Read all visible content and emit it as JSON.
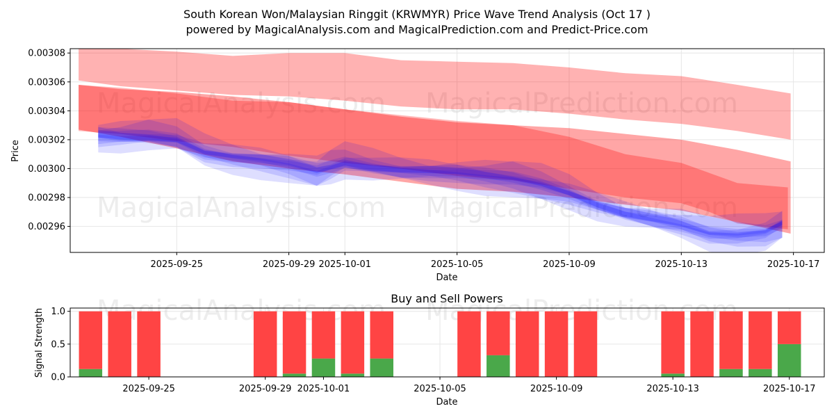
{
  "title_line1": "South Korean Won/Malaysian Ringgit (KRWMYR) Price Wave Trend Analysis (Oct 17 )",
  "title_line2": "powered by MagicalAnalysis.com and MagicalPrediction.com and Predict-Price.com",
  "watermarks": [
    "MagicalAnalysis.com",
    "MagicalPrediction.com"
  ],
  "colors": {
    "buy": "#4aa84a",
    "sell": "#ff4444",
    "red_band": "#ff0000",
    "blue_band": "#0000ff"
  },
  "chart_data": [
    {
      "type": "area",
      "title": "",
      "xlabel": "Date",
      "ylabel": "Price",
      "ylim": [
        0.002942,
        0.003083
      ],
      "yticks": [
        "0.00296",
        "0.00298",
        "0.00300",
        "0.00302",
        "0.00304",
        "0.00306",
        "0.00308"
      ],
      "ytick_values": [
        0.00296,
        0.00298,
        0.003,
        0.00302,
        0.00304,
        0.00306,
        0.00308
      ],
      "xticks": [
        "2025-09-25",
        "2025-09-29",
        "2025-10-01",
        "2025-10-05",
        "2025-10-09",
        "2025-10-13",
        "2025-10-17"
      ],
      "xtick_days": [
        3,
        7,
        9,
        13,
        17,
        21,
        25
      ],
      "xlim_days": [
        -0.8,
        26.1
      ],
      "grid": true,
      "red_bands": [
        {
          "name": "outer-band",
          "days": [
            -0.5,
            1,
            3,
            5,
            7,
            9,
            11,
            13,
            15,
            17,
            19,
            21,
            23,
            24.9
          ],
          "upper": [
            0.003083,
            0.003083,
            0.003081,
            0.003078,
            0.00308,
            0.00308,
            0.003075,
            0.003074,
            0.003073,
            0.00307,
            0.003066,
            0.003064,
            0.003058,
            0.003052
          ],
          "lower": [
            0.003061,
            0.003057,
            0.003054,
            0.003051,
            0.00305,
            0.003047,
            0.003043,
            0.003041,
            0.003041,
            0.003038,
            0.003034,
            0.003031,
            0.003026,
            0.00302
          ]
        },
        {
          "name": "middle-band",
          "days": [
            -0.5,
            1,
            3,
            5,
            7,
            9,
            11,
            13,
            15,
            17,
            19,
            21,
            23,
            24.9
          ],
          "upper": [
            0.003058,
            0.003055,
            0.003053,
            0.00305,
            0.003046,
            0.003041,
            0.003036,
            0.003032,
            0.00303,
            0.003028,
            0.003024,
            0.00302,
            0.003013,
            0.003005
          ],
          "lower": [
            0.003027,
            0.003022,
            0.003014,
            0.003005,
            0.003,
            0.002996,
            0.002991,
            0.002986,
            0.002984,
            0.00298,
            0.002975,
            0.002971,
            0.002963,
            0.002955
          ]
        },
        {
          "name": "inner-band",
          "days": [
            -0.5,
            1,
            3,
            5,
            7,
            9,
            11,
            13,
            15,
            17,
            18,
            19,
            21,
            22,
            23,
            24.8
          ],
          "upper": [
            0.003058,
            0.003056,
            0.003052,
            0.003047,
            0.003046,
            0.003041,
            0.003037,
            0.003033,
            0.00303,
            0.003022,
            0.003016,
            0.00301,
            0.003004,
            0.002997,
            0.00299,
            0.002987
          ],
          "lower": [
            0.003026,
            0.003024,
            0.003019,
            0.003015,
            0.003009,
            0.003004,
            0.003,
            0.002995,
            0.002992,
            0.002986,
            0.002983,
            0.00298,
            0.002976,
            0.00297,
            0.002962,
            0.002958
          ]
        }
      ],
      "blue_center": {
        "days": [
          0.2,
          1,
          2,
          3,
          4,
          5,
          6,
          7,
          8,
          8.5,
          9,
          10,
          11,
          12,
          13,
          14,
          15,
          16,
          17,
          18,
          19,
          20,
          21,
          22,
          23,
          24,
          24.6
        ],
        "values": [
          0.003023,
          0.003022,
          0.003022,
          0.00302,
          0.003011,
          0.003008,
          0.003006,
          0.003003,
          0.002998,
          0.003001,
          0.003004,
          0.003001,
          0.002999,
          0.002998,
          0.002997,
          0.002995,
          0.002993,
          0.002989,
          0.002983,
          0.002975,
          0.002969,
          0.002965,
          0.002961,
          0.002955,
          0.002954,
          0.002956,
          0.002962
        ]
      },
      "blue_offsets": [
        [
          1.2e-05,
          -4e-06
        ],
        [
          6e-06,
          -1e-05
        ],
        [
          4e-06,
          -1.4e-05
        ],
        [
          9e-06,
          -7e-06
        ],
        [
          2e-06,
          -5e-06
        ],
        [
          1.5e-05,
          -2e-06
        ],
        [
          5e-06,
          -1.2e-05
        ]
      ]
    },
    {
      "type": "bar",
      "title": "Buy and Sell Powers",
      "xlabel": "Date",
      "ylabel": "Signal Strength",
      "ylim": [
        0,
        1.05
      ],
      "yticks": [
        "0.0",
        "0.5",
        "1.0"
      ],
      "ytick_values": [
        0,
        0.5,
        1.0
      ],
      "xticks": [
        "2025-09-25",
        "2025-09-29",
        "2025-10-01",
        "2025-10-05",
        "2025-10-09",
        "2025-10-13",
        "2025-10-17"
      ],
      "xtick_days": [
        3,
        7,
        9,
        13,
        17,
        21,
        25
      ],
      "xlim_days": [
        0.3,
        26.2
      ],
      "grid": true,
      "days": [
        1,
        2,
        3,
        7,
        8,
        9,
        10,
        11,
        14,
        15,
        16,
        17,
        18,
        21,
        22,
        23,
        24,
        25
      ],
      "buy": [
        0.12,
        0.0,
        0.0,
        0.0,
        0.05,
        0.28,
        0.05,
        0.28,
        0.0,
        0.33,
        0.0,
        0.0,
        0.0,
        0.05,
        0.0,
        0.12,
        0.12,
        0.5
      ],
      "sell": [
        0.88,
        1.0,
        1.0,
        1.0,
        0.95,
        0.72,
        0.95,
        0.72,
        1.0,
        0.67,
        1.0,
        1.0,
        1.0,
        0.95,
        1.0,
        0.88,
        0.88,
        0.5
      ]
    }
  ]
}
